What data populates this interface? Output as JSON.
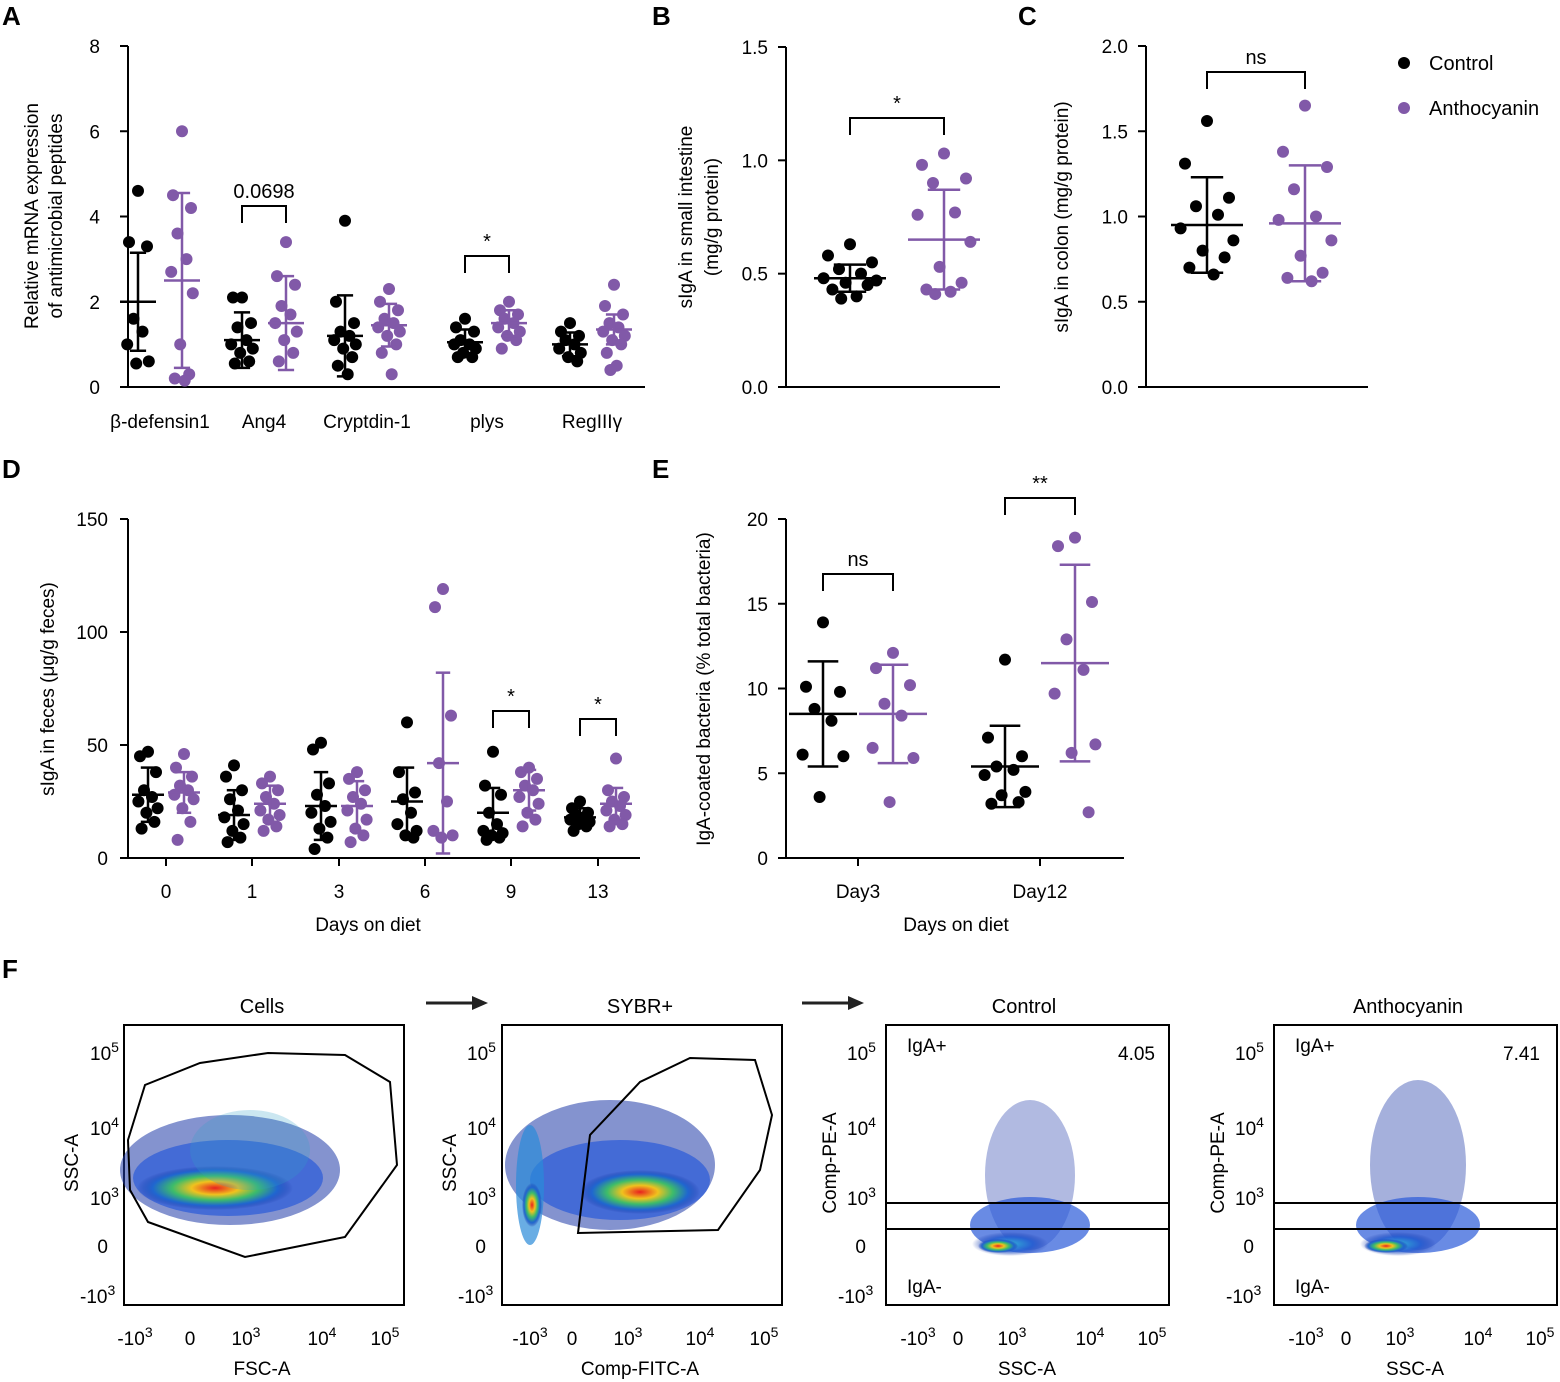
{
  "colors": {
    "control": "#000000",
    "anthocyanin": "#8159a8"
  },
  "legend": {
    "control": "Control",
    "anthocyanin": "Anthocyanin"
  },
  "panels": {
    "a": "A",
    "b": "B",
    "c": "C",
    "d": "D",
    "e": "E",
    "f": "F"
  },
  "chart_data": [
    {
      "id": "A",
      "type": "scatter",
      "ylabel_line1": "Relative mRNA expression",
      "ylabel_line2": "of antimicrobial peptides",
      "ylim": [
        0,
        8
      ],
      "yticks": [
        "0",
        "2",
        "4",
        "6",
        "8"
      ],
      "categories": [
        "β-defensin1",
        "Ang4",
        "Cryptdin-1",
        "plys",
        "RegIIIγ"
      ],
      "series": [
        {
          "name": "Control",
          "mean": [
            2.0,
            1.1,
            1.2,
            1.05,
            1.0
          ],
          "sd": [
            1.15,
            0.65,
            0.95,
            0.3,
            0.28
          ],
          "points": [
            [
              4.6,
              3.4,
              3.3,
              1.6,
              1.3,
              1.0,
              0.6,
              0.55
            ],
            [
              2.1,
              2.1,
              1.5,
              1.4,
              1.1,
              1.0,
              0.9,
              0.8,
              0.6,
              0.55
            ],
            [
              3.9,
              2.0,
              1.5,
              1.3,
              1.2,
              1.1,
              1.0,
              0.9,
              0.7,
              0.5,
              0.3
            ],
            [
              1.6,
              1.4,
              1.3,
              1.1,
              1.0,
              1.0,
              0.9,
              0.8,
              0.7,
              0.7
            ],
            [
              1.5,
              1.3,
              1.2,
              1.1,
              1.0,
              0.9,
              0.8,
              0.7,
              0.6
            ]
          ]
        },
        {
          "name": "Anthocyanin",
          "mean": [
            2.5,
            1.5,
            1.45,
            1.5,
            1.35
          ],
          "sd": [
            2.05,
            1.1,
            0.5,
            0.3,
            0.35
          ],
          "points": [
            [
              6.0,
              4.5,
              4.2,
              3.6,
              3.0,
              2.7,
              2.2,
              1.0,
              0.3,
              0.2,
              0.15
            ],
            [
              3.4,
              2.6,
              2.4,
              1.9,
              1.7,
              1.5,
              1.3,
              1.1,
              0.8,
              0.6
            ],
            [
              2.3,
              2.0,
              1.8,
              1.6,
              1.5,
              1.4,
              1.3,
              1.2,
              1.0,
              0.8,
              0.3
            ],
            [
              2.0,
              1.8,
              1.7,
              1.6,
              1.5,
              1.4,
              1.3,
              1.2,
              1.1,
              0.9
            ],
            [
              2.4,
              1.9,
              1.7,
              1.5,
              1.4,
              1.3,
              1.2,
              1.1,
              1.0,
              0.8,
              0.5,
              0.4
            ]
          ]
        }
      ],
      "annotations": [
        {
          "between": "Ang4",
          "text": "0.0698"
        },
        {
          "between": "plys",
          "text": "*"
        }
      ]
    },
    {
      "id": "B",
      "type": "scatter",
      "ylabel_line1": "sIgA in small intestine",
      "ylabel_line2": "(mg/g protein)",
      "ylim": [
        0,
        1.5
      ],
      "yticks": [
        "0.0",
        "0.5",
        "1.0",
        "1.5"
      ],
      "series": [
        {
          "name": "Control",
          "mean": 0.48,
          "sd": 0.06,
          "points": [
            0.63,
            0.58,
            0.55,
            0.52,
            0.5,
            0.48,
            0.47,
            0.46,
            0.45,
            0.43,
            0.4,
            0.39
          ]
        },
        {
          "name": "Anthocyanin",
          "mean": 0.65,
          "sd": 0.22,
          "points": [
            1.03,
            0.98,
            0.92,
            0.9,
            0.77,
            0.76,
            0.64,
            0.53,
            0.46,
            0.43,
            0.42,
            0.41
          ]
        }
      ],
      "annotations": [
        {
          "text": "*"
        }
      ]
    },
    {
      "id": "C",
      "type": "scatter",
      "ylabel": "sIgA in colon (mg/g protein)",
      "ylim": [
        0,
        2.0
      ],
      "yticks": [
        "0.0",
        "0.5",
        "1.0",
        "1.5",
        "2.0"
      ],
      "series": [
        {
          "name": "Control",
          "mean": 0.95,
          "sd": 0.28,
          "points": [
            1.56,
            1.31,
            1.11,
            1.06,
            1.01,
            0.93,
            0.86,
            0.8,
            0.76,
            0.7,
            0.66
          ]
        },
        {
          "name": "Anthocyanin",
          "mean": 0.96,
          "sd": 0.34,
          "points": [
            1.65,
            1.38,
            1.29,
            1.16,
            1.0,
            0.98,
            0.86,
            0.77,
            0.67,
            0.64,
            0.62
          ]
        }
      ],
      "annotations": [
        {
          "text": "ns"
        }
      ]
    },
    {
      "id": "D",
      "type": "scatter",
      "ylabel": "sIgA in feces (μg/g feces)",
      "xlabel": "Days on diet",
      "ylim": [
        0,
        150
      ],
      "yticks": [
        "0",
        "50",
        "100",
        "150"
      ],
      "categories": [
        "0",
        "1",
        "3",
        "6",
        "9",
        "13"
      ],
      "series": [
        {
          "name": "Control",
          "mean": [
            28,
            19,
            23,
            25,
            20,
            18
          ],
          "sd": [
            12,
            11,
            15,
            15,
            11,
            4
          ],
          "points": [
            [
              47,
              45,
              38,
              30,
              27,
              25,
              22,
              20,
              16,
              13
            ],
            [
              41,
              36,
              30,
              26,
              21,
              18,
              15,
              12,
              9,
              7
            ],
            [
              51,
              48,
              33,
              28,
              23,
              20,
              16,
              13,
              9,
              4
            ],
            [
              60,
              38,
              29,
              26,
              20,
              15,
              12,
              10,
              9
            ],
            [
              47,
              32,
              28,
              20,
              15,
              12,
              11,
              10,
              9,
              8
            ],
            [
              25,
              22,
              20,
              19,
              18,
              17,
              16,
              15,
              14,
              12
            ]
          ]
        },
        {
          "name": "Anthocyanin",
          "mean": [
            29,
            24,
            23,
            42,
            30,
            24
          ],
          "sd": [
            9,
            8,
            11,
            40,
            9,
            7
          ],
          "points": [
            [
              46,
              40,
              36,
              32,
              30,
              28,
              26,
              22,
              16,
              8
            ],
            [
              36,
              33,
              30,
              27,
              24,
              21,
              19,
              17,
              14,
              12
            ],
            [
              38,
              35,
              30,
              27,
              24,
              21,
              17,
              13,
              10,
              7
            ],
            [
              119,
              111,
              63,
              42,
              25,
              12,
              10,
              9
            ],
            [
              40,
              38,
              35,
              32,
              30,
              27,
              24,
              20,
              17,
              14
            ],
            [
              44,
              30,
              27,
              25,
              23,
              21,
              19,
              17,
              15,
              14
            ]
          ]
        }
      ],
      "annotations": [
        {
          "between": "9",
          "text": "*"
        },
        {
          "between": "13",
          "text": "*"
        }
      ]
    },
    {
      "id": "E",
      "type": "scatter",
      "ylabel": "IgA-coated bacteria (% total bacteria)",
      "xlabel": "Days on diet",
      "ylim": [
        0,
        20
      ],
      "yticks": [
        "0",
        "5",
        "10",
        "15",
        "20"
      ],
      "categories": [
        "Day3",
        "Day12"
      ],
      "series": [
        {
          "name": "Control",
          "mean": [
            8.5,
            5.4
          ],
          "sd": [
            3.1,
            2.4
          ],
          "points": [
            [
              13.9,
              10.1,
              9.8,
              8.8,
              8.1,
              6.1,
              6.0,
              3.6
            ],
            [
              11.7,
              7.1,
              6.0,
              5.4,
              5.2,
              4.9,
              3.9,
              3.7,
              3.3,
              3.2
            ]
          ]
        },
        {
          "name": "Anthocyanin",
          "mean": [
            8.5,
            11.5
          ],
          "sd": [
            2.9,
            5.8
          ],
          "points": [
            [
              12.1,
              11.2,
              10.2,
              9.1,
              8.4,
              6.5,
              5.9,
              3.3
            ],
            [
              18.9,
              18.4,
              15.1,
              12.9,
              11.1,
              9.7,
              6.7,
              6.2,
              2.7
            ]
          ]
        }
      ],
      "annotations": [
        {
          "between": "Day3",
          "text": "ns"
        },
        {
          "between": "Day12",
          "text": "**"
        }
      ]
    }
  ],
  "flow": {
    "plots": [
      {
        "title": "Cells",
        "xlabel": "FSC-A",
        "ylabel": "SSC-A"
      },
      {
        "title": "SYBR+",
        "xlabel": "Comp-FITC-A",
        "ylabel": "SSC-A"
      },
      {
        "title": "Control",
        "xlabel": "SSC-A",
        "ylabel": "Comp-PE-A",
        "igapos": "IgA+",
        "iganeg": "IgA-",
        "value": "4.05"
      },
      {
        "title": "Anthocyanin",
        "xlabel": "SSC-A",
        "ylabel": "Comp-PE-A",
        "igapos": "IgA+",
        "iganeg": "IgA-",
        "value": "7.41"
      }
    ]
  }
}
